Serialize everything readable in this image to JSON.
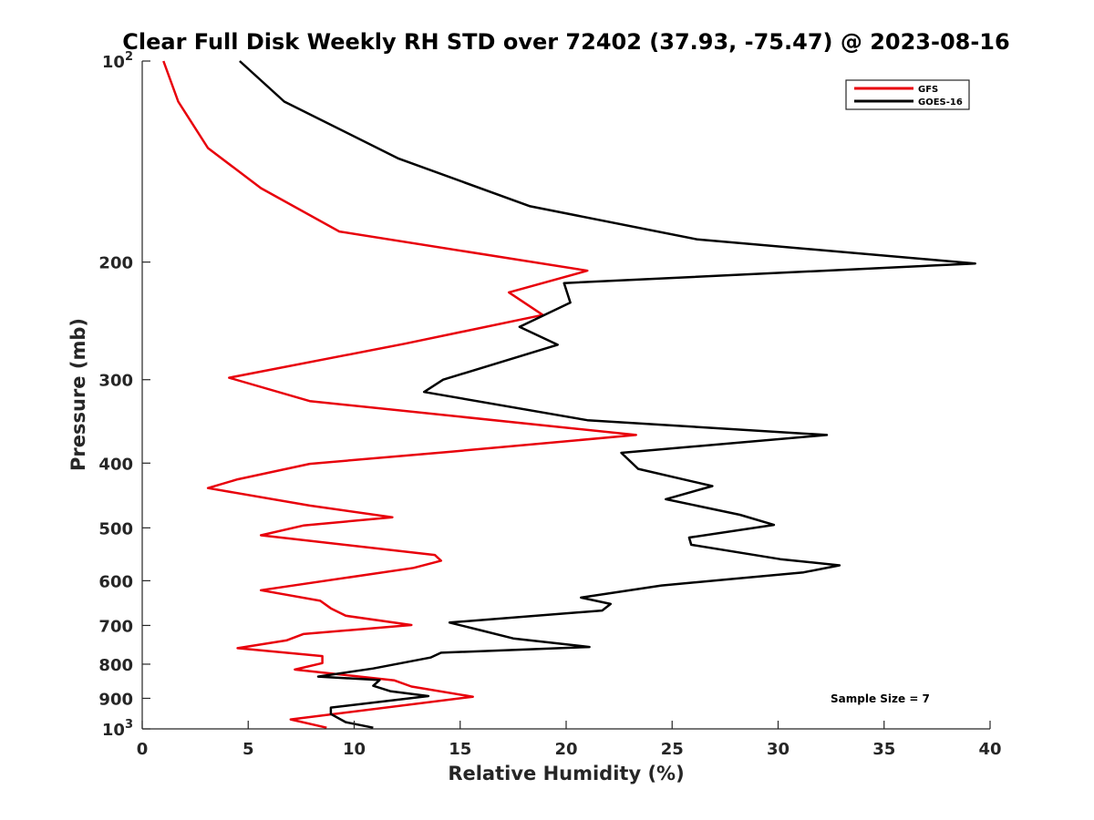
{
  "chart_data": {
    "type": "line",
    "title": "Clear Full Disk Weekly RH STD over 72402 (37.93, -75.47) @ 2023-08-16",
    "xlabel": "Relative Humidity (%)",
    "ylabel": "Pressure (mb)",
    "xlim": [
      0,
      40
    ],
    "ylim": [
      100,
      1000
    ],
    "y_scale": "log",
    "y_reversed": true,
    "x_ticks": [
      "0",
      "5",
      "10",
      "15",
      "20",
      "25",
      "30",
      "35",
      "40"
    ],
    "y_ticks": [
      {
        "value": 100,
        "base": "10",
        "exp": "2"
      },
      {
        "value": 200,
        "label": "200"
      },
      {
        "value": 300,
        "label": "300"
      },
      {
        "value": 400,
        "label": "400"
      },
      {
        "value": 500,
        "label": "500"
      },
      {
        "value": 600,
        "label": "600"
      },
      {
        "value": 700,
        "label": "700"
      },
      {
        "value": 800,
        "label": "800"
      },
      {
        "value": 900,
        "label": "900"
      },
      {
        "value": 1000,
        "base": "10",
        "exp": "3"
      }
    ],
    "legend_position": "top-right",
    "annotation": "Sample Size = 7",
    "series": [
      {
        "name": "GFS",
        "color": "#e8000b",
        "points": [
          [
            1.0,
            100
          ],
          [
            1.7,
            115
          ],
          [
            3.1,
            135
          ],
          [
            5.6,
            155
          ],
          [
            9.3,
            180
          ],
          [
            21.0,
            206
          ],
          [
            17.3,
            222
          ],
          [
            18.9,
            240
          ],
          [
            12.4,
            265
          ],
          [
            4.1,
            298
          ],
          [
            7.9,
            323
          ],
          [
            23.3,
            363
          ],
          [
            14.4,
            385
          ],
          [
            7.9,
            401
          ],
          [
            4.5,
            423
          ],
          [
            3.1,
            436
          ],
          [
            7.9,
            463
          ],
          [
            11.8,
            482
          ],
          [
            7.6,
            496
          ],
          [
            5.6,
            513
          ],
          [
            13.8,
            549
          ],
          [
            14.1,
            560
          ],
          [
            12.8,
            574
          ],
          [
            5.6,
            620
          ],
          [
            8.4,
            643
          ],
          [
            8.9,
            660
          ],
          [
            9.6,
            677
          ],
          [
            12.7,
            699
          ],
          [
            7.6,
            721
          ],
          [
            6.8,
            737
          ],
          [
            4.5,
            757
          ],
          [
            8.5,
            778
          ],
          [
            8.5,
            797
          ],
          [
            7.2,
            815
          ],
          [
            11.9,
            846
          ],
          [
            12.7,
            864
          ],
          [
            15.6,
            895
          ],
          [
            7.0,
            968
          ],
          [
            8.7,
            996
          ]
        ]
      },
      {
        "name": "GOES-16",
        "color": "#000000",
        "points": [
          [
            4.6,
            100
          ],
          [
            6.7,
            115
          ],
          [
            12.1,
            140
          ],
          [
            18.3,
            165
          ],
          [
            26.2,
            185
          ],
          [
            39.3,
            201
          ],
          [
            19.9,
            215
          ],
          [
            20.2,
            230
          ],
          [
            17.8,
            250
          ],
          [
            19.6,
            266
          ],
          [
            14.2,
            300
          ],
          [
            13.3,
            313
          ],
          [
            21.0,
            345
          ],
          [
            32.3,
            363
          ],
          [
            22.6,
            386
          ],
          [
            23.4,
            408
          ],
          [
            26.9,
            433
          ],
          [
            24.7,
            453
          ],
          [
            28.2,
            478
          ],
          [
            29.8,
            495
          ],
          [
            25.8,
            517
          ],
          [
            25.9,
            530
          ],
          [
            30.1,
            557
          ],
          [
            32.9,
            569
          ],
          [
            31.2,
            583
          ],
          [
            24.5,
            610
          ],
          [
            20.7,
            636
          ],
          [
            22.1,
            650
          ],
          [
            21.7,
            665
          ],
          [
            14.5,
            693
          ],
          [
            15.9,
            711
          ],
          [
            17.5,
            732
          ],
          [
            21.1,
            754
          ],
          [
            14.1,
            769
          ],
          [
            13.6,
            782
          ],
          [
            10.9,
            812
          ],
          [
            8.3,
            835
          ],
          [
            11.2,
            845
          ],
          [
            10.9,
            862
          ],
          [
            11.7,
            878
          ],
          [
            13.5,
            893
          ],
          [
            8.9,
            929
          ],
          [
            8.9,
            950
          ],
          [
            9.6,
            977
          ],
          [
            10.9,
            996
          ]
        ]
      }
    ]
  }
}
